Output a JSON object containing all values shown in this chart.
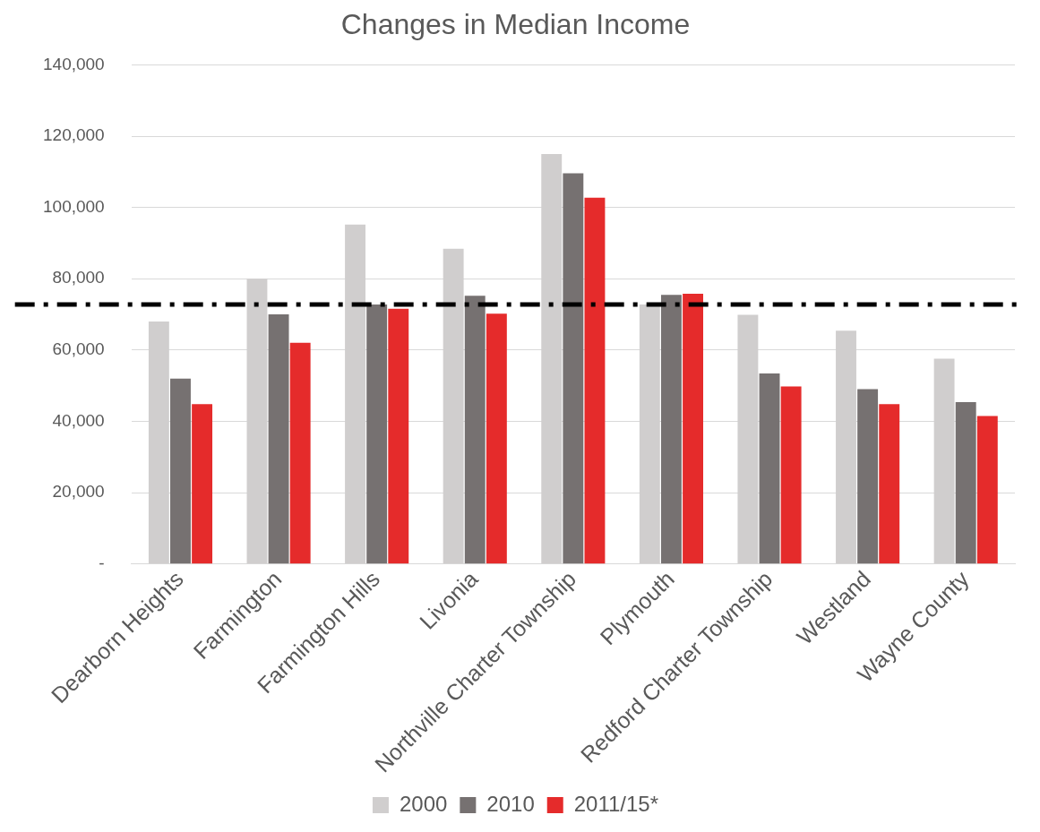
{
  "chart_data": {
    "type": "bar",
    "title": "Changes in Median Income",
    "categories": [
      "Dearborn Heights",
      "Farmington",
      "Farmington Hills",
      "Livonia",
      "Northville Charter Township",
      "Plymouth",
      "Redford Charter Township",
      "Westland",
      "Wayne County"
    ],
    "series": [
      {
        "name": "2000",
        "color": "#d0cece",
        "values": [
          68000,
          80000,
          95200,
          88400,
          115000,
          72800,
          69900,
          65400,
          57600
        ]
      },
      {
        "name": "2010",
        "color": "#767171",
        "values": [
          52000,
          70000,
          72800,
          75200,
          109600,
          75500,
          53400,
          49000,
          45400
        ]
      },
      {
        "name": "2011/15*",
        "color": "#e52b2b",
        "values": [
          44800,
          62000,
          71600,
          70200,
          102700,
          75800,
          49800,
          44800,
          41500
        ]
      }
    ],
    "ylim": [
      0,
      140000
    ],
    "yticks": [
      {
        "value": 0,
        "label": "-"
      },
      {
        "value": 20000,
        "label": "20,000"
      },
      {
        "value": 40000,
        "label": "40,000"
      },
      {
        "value": 60000,
        "label": "60,000"
      },
      {
        "value": 80000,
        "label": "80,000"
      },
      {
        "value": 100000,
        "label": "100,000"
      },
      {
        "value": 120000,
        "label": "120,000"
      },
      {
        "value": 140000,
        "label": "140,000"
      }
    ],
    "ref_lines": [
      {
        "axis": "y",
        "value": 72800,
        "color": "#000000",
        "line_style": "dashdot"
      }
    ],
    "grid": "y",
    "legend": "bottom"
  }
}
